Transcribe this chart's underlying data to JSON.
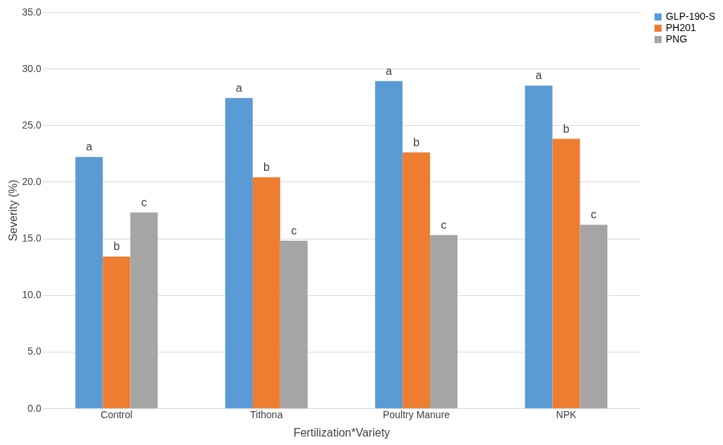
{
  "chart_data": {
    "type": "bar",
    "xlabel": "Fertilization*Variety",
    "ylabel": "Severity (%)",
    "categories": [
      "Control",
      "Tithona",
      "Poultry Manure",
      "NPK"
    ],
    "series": [
      {
        "name": "GLP-190-S",
        "color": "#5b9bd5",
        "values": [
          22.2,
          27.4,
          28.9,
          28.5
        ],
        "value_labels": [
          "a",
          "a",
          "a",
          "a"
        ]
      },
      {
        "name": "PH201",
        "color": "#ed7d31",
        "values": [
          13.4,
          20.4,
          22.6,
          23.8
        ],
        "value_labels": [
          "b",
          "b",
          "b",
          "b"
        ]
      },
      {
        "name": "PNG",
        "color": "#a5a5a5",
        "values": [
          17.3,
          14.8,
          15.3,
          16.2
        ],
        "value_labels": [
          "c",
          "c",
          "c",
          "c"
        ]
      }
    ],
    "ylim": [
      0,
      35
    ],
    "yticks": [
      {
        "value": 0,
        "label": "0.0"
      },
      {
        "value": 5,
        "label": "5.0"
      },
      {
        "value": 10,
        "label": "10.0"
      },
      {
        "value": 15,
        "label": "15.0"
      },
      {
        "value": 20,
        "label": "20.0"
      },
      {
        "value": 25,
        "label": "25.0"
      },
      {
        "value": 30,
        "label": "30.0"
      },
      {
        "value": 35,
        "label": "35.0"
      }
    ],
    "grid": "y",
    "legend": "right"
  }
}
